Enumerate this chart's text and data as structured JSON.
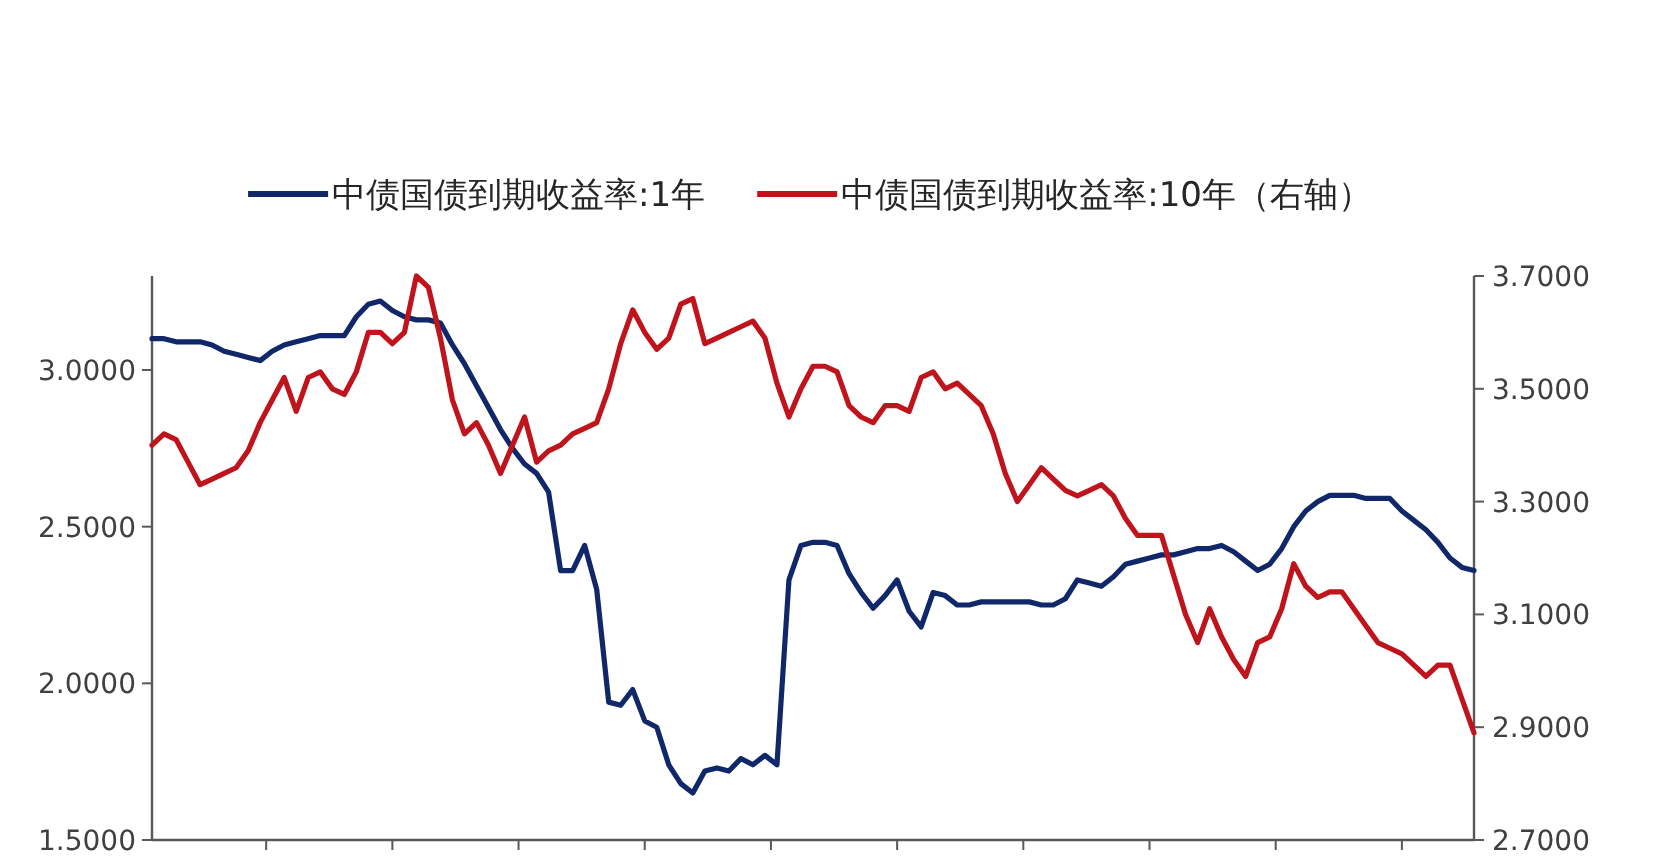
{
  "chart_data": {
    "type": "line",
    "legend": "top",
    "grid": false,
    "line_style": "solid",
    "marker": "none",
    "categories": [
      null,
      null,
      null,
      null,
      null,
      null,
      null,
      null,
      null,
      null,
      null,
      null,
      null,
      null,
      null,
      null,
      null,
      null,
      null,
      null,
      null,
      null,
      null,
      null,
      null,
      null,
      null,
      null,
      null,
      null,
      null,
      null,
      null,
      null,
      null,
      null,
      null,
      null,
      null,
      null,
      null,
      null,
      null,
      null,
      null,
      null,
      null,
      null,
      null,
      null,
      null,
      null,
      null,
      null,
      null,
      null,
      null,
      null,
      null,
      null,
      null,
      null,
      null,
      null,
      null,
      null,
      null,
      null,
      null,
      null,
      null,
      null,
      null,
      null,
      null,
      null,
      null,
      null,
      null,
      null,
      null,
      null,
      null,
      null,
      null,
      null,
      null,
      null,
      null,
      null,
      null,
      null,
      null,
      null,
      null,
      null,
      null,
      null,
      null,
      null,
      null,
      null,
      null,
      null,
      null,
      null,
      null,
      null,
      null,
      null,
      null
    ],
    "ylim": [
      1.5,
      3.3
    ],
    "yticks": [
      {
        "value": 1.5,
        "label": "1.5000"
      },
      {
        "value": 2.0,
        "label": "2.0000"
      },
      {
        "value": 2.5,
        "label": "2.5000"
      },
      {
        "value": 3.0,
        "label": "3.0000"
      }
    ],
    "y2lim": [
      2.7,
      3.7
    ],
    "y2ticks": [
      {
        "value": 2.7,
        "label": "2.7000"
      },
      {
        "value": 2.9,
        "label": "2.9000"
      },
      {
        "value": 3.1,
        "label": "3.1000"
      },
      {
        "value": 3.3,
        "label": "3.3000"
      },
      {
        "value": 3.5,
        "label": "3.5000"
      },
      {
        "value": 3.7,
        "label": "3.7000"
      }
    ],
    "series": [
      {
        "name": "中债国债到期收益率:1年",
        "color": "#10286a",
        "values": [
          3.1,
          3.1,
          3.09,
          3.09,
          3.09,
          3.08,
          3.06,
          3.05,
          3.04,
          3.03,
          3.06,
          3.08,
          3.09,
          3.1,
          3.11,
          3.11,
          3.11,
          3.17,
          3.21,
          3.22,
          3.19,
          3.17,
          3.16,
          3.16,
          3.15,
          3.08,
          3.02,
          2.95,
          2.88,
          2.81,
          2.75,
          2.7,
          2.67,
          2.61,
          2.36,
          2.36,
          2.44,
          2.3,
          1.94,
          1.93,
          1.98,
          1.88,
          1.86,
          1.74,
          1.68,
          1.65,
          1.72,
          1.73,
          1.72,
          1.76,
          1.74,
          1.77,
          1.74,
          2.33,
          2.44,
          2.45,
          2.45,
          2.44,
          2.35,
          2.29,
          2.24,
          2.28,
          2.33,
          2.23,
          2.18,
          2.29,
          2.28,
          2.25,
          2.25,
          2.26,
          2.26,
          2.26,
          2.26,
          2.26,
          2.25,
          2.25,
          2.27,
          2.33,
          2.32,
          2.31,
          2.34,
          2.38,
          2.39,
          2.4,
          2.41,
          2.41,
          2.42,
          2.43,
          2.43,
          2.44,
          2.42,
          2.39,
          2.36,
          2.38,
          2.43,
          2.5,
          2.55,
          2.58,
          2.6,
          2.6,
          2.6,
          2.59,
          2.59,
          2.59,
          2.55,
          2.52,
          2.49,
          2.45,
          2.4,
          2.37,
          2.36
        ]
      },
      {
        "name": "中债国债到期收益率:10年（右轴）",
        "color": "#c0141c",
        "axis": "y2",
        "values": [
          3.4,
          3.42,
          3.41,
          3.37,
          3.33,
          3.34,
          3.35,
          3.36,
          3.39,
          3.44,
          3.48,
          3.52,
          3.46,
          3.52,
          3.53,
          3.5,
          3.49,
          3.53,
          3.6,
          3.6,
          3.58,
          3.6,
          3.7,
          3.68,
          3.59,
          3.48,
          3.42,
          3.44,
          3.4,
          3.35,
          3.4,
          3.45,
          3.37,
          3.39,
          3.4,
          3.42,
          3.43,
          3.44,
          3.5,
          3.58,
          3.64,
          3.6,
          3.57,
          3.59,
          3.65,
          3.66,
          3.58,
          3.59,
          3.6,
          3.61,
          3.62,
          3.59,
          3.51,
          3.45,
          3.5,
          3.54,
          3.54,
          3.53,
          3.47,
          3.45,
          3.44,
          3.47,
          3.47,
          3.46,
          3.52,
          3.53,
          3.5,
          3.51,
          3.49,
          3.47,
          3.42,
          3.35,
          3.3,
          3.33,
          3.36,
          3.34,
          3.32,
          3.31,
          3.32,
          3.33,
          3.31,
          3.27,
          3.24,
          3.24,
          3.24,
          3.17,
          3.1,
          3.05,
          3.11,
          3.06,
          3.02,
          2.99,
          3.05,
          3.06,
          3.11,
          3.19,
          3.15,
          3.13,
          3.14,
          3.14,
          3.11,
          3.08,
          3.05,
          3.04,
          3.03,
          3.01,
          2.99,
          3.01,
          3.01,
          2.95,
          2.89
        ]
      }
    ]
  }
}
